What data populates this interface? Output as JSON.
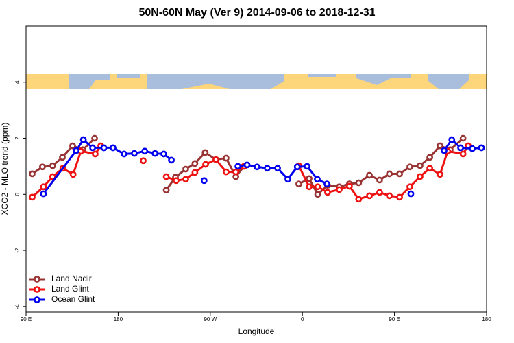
{
  "chart_data": {
    "type": "line",
    "title": "50N-60N May (Ver 9)   2014-09-06 to 2018-12-31",
    "xlabel": "Longitude",
    "ylabel": "XCO2 - MLO trend (ppm)",
    "xlim": [
      90,
      540
    ],
    "ylim": [
      -4.2,
      6
    ],
    "xticks": [
      {
        "value": 90,
        "label": "90 E"
      },
      180,
      {
        "value": 270,
        "label": "90 W"
      },
      {
        "value": 360,
        "label": "0"
      },
      {
        "value": 450,
        "label": "90 E"
      },
      {
        "value": 540,
        "label": "180"
      }
    ],
    "yticks": [
      -4,
      -2,
      0,
      2,
      4
    ],
    "legend": "bottom-left",
    "series": [
      {
        "name": "Land Nadir",
        "color": "#993333",
        "x": [
          96,
          106,
          116,
          125.5,
          135.5,
          145.6,
          157,
          null,
          227,
          236,
          246,
          255,
          265,
          275.5,
          285.5,
          295,
          303,
          null,
          356.5,
          366.6,
          375,
          384.6,
          396,
          406,
          415,
          425.5,
          435.5,
          445,
          455,
          465,
          475,
          484.5,
          494.5,
          504.5,
          517
        ],
        "values": [
          0.73,
          0.98,
          1.02,
          1.32,
          1.73,
          1.59,
          2.0,
          null,
          0.15,
          0.61,
          0.9,
          1.1,
          1.49,
          1.24,
          1.29,
          0.63,
          1.0,
          null,
          0.37,
          0.56,
          0.0,
          0.32,
          0.27,
          0.37,
          0.41,
          0.68,
          0.51,
          0.73,
          0.73,
          0.98,
          1.02,
          1.32,
          1.73,
          1.59,
          2.0
        ]
      },
      {
        "name": "Land Glint",
        "color": "#ee1111",
        "x": [
          96,
          107,
          116,
          126,
          136,
          143.6,
          157.6,
          163,
          null,
          204.5,
          null,
          227,
          236.6,
          246,
          255,
          265.5,
          275.5,
          285.5,
          295,
          303,
          null,
          356.5,
          366.6,
          375,
          384.6,
          396,
          406,
          415,
          425.5,
          435.5,
          445,
          455,
          465,
          475,
          484.5,
          494.5,
          502,
          517,
          522
        ],
        "values": [
          -0.1,
          0.27,
          0.63,
          0.93,
          0.71,
          1.54,
          1.44,
          1.73,
          null,
          1.2,
          null,
          0.63,
          0.49,
          0.54,
          0.78,
          1.07,
          1.24,
          0.8,
          0.8,
          1.0,
          null,
          1.02,
          0.27,
          0.27,
          0.07,
          0.17,
          0.29,
          -0.17,
          -0.05,
          0.07,
          -0.05,
          -0.1,
          0.27,
          0.63,
          0.93,
          0.71,
          1.54,
          1.44,
          1.73
        ]
      },
      {
        "name": "Ocean Glint",
        "color": "#0000ee",
        "x": [
          107,
          139,
          146,
          155,
          166,
          175,
          185.8,
          195.8,
          206,
          216,
          224.6,
          232,
          null,
          264,
          null,
          297,
          306,
          315.7,
          325.7,
          335.8,
          345.8,
          355,
          364.6,
          374.6,
          384,
          null,
          466,
          null,
          498.5,
          506,
          514.6,
          526,
          535
        ],
        "values": [
          0.02,
          1.56,
          1.95,
          1.66,
          1.66,
          1.66,
          1.44,
          1.46,
          1.54,
          1.46,
          1.44,
          1.22,
          null,
          0.49,
          null,
          1.0,
          1.05,
          0.98,
          0.93,
          0.93,
          0.54,
          0.98,
          1.0,
          0.54,
          0.37,
          null,
          0.02,
          null,
          1.56,
          1.95,
          1.66,
          1.63,
          1.66
        ]
      }
    ]
  }
}
